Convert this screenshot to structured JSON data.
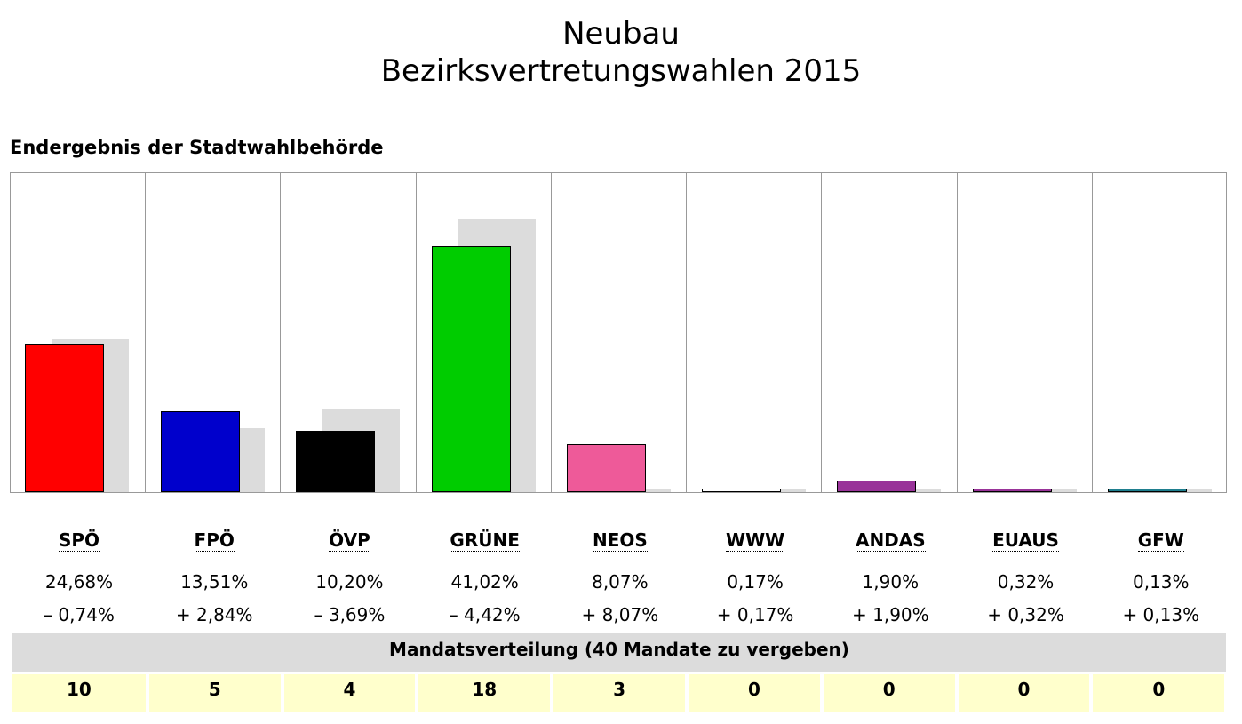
{
  "title": "Neubau",
  "subtitle": "Bezirksvertretungswahlen 2015",
  "section": "Endergebnis der Stadtwahlbehörde",
  "mandate_header": "Mandatsverteilung (40 Mandate zu vergeben)",
  "chart_data": {
    "type": "bar",
    "categories": [
      "SPÖ",
      "FPÖ",
      "ÖVP",
      "GRÜNE",
      "NEOS",
      "WWW",
      "ANDAS",
      "EUAUS",
      "GFW"
    ],
    "values": [
      24.68,
      13.51,
      10.2,
      41.02,
      8.07,
      0.17,
      1.9,
      0.32,
      0.13
    ],
    "previous": [
      25.42,
      10.67,
      13.89,
      45.44,
      0,
      0,
      0,
      0,
      0
    ],
    "value_labels": [
      "24,68%",
      "13,51%",
      "10,20%",
      "41,02%",
      "8,07%",
      "0,17%",
      "1,90%",
      "0,32%",
      "0,13%"
    ],
    "change_labels": [
      "– 0,74%",
      "+ 2,84%",
      "– 3,69%",
      "– 4,42%",
      "+ 8,07%",
      "+ 0,17%",
      "+ 1,90%",
      "+ 0,32%",
      "+ 0,13%"
    ],
    "mandates": [
      "10",
      "5",
      "4",
      "18",
      "3",
      "0",
      "0",
      "0",
      "0"
    ],
    "colors": [
      "#ff0000",
      "#0000cc",
      "#000000",
      "#00cc00",
      "#ee5a99",
      "#ffffff",
      "#993399",
      "#993399",
      "#1f7f8f"
    ],
    "previous_color": "#dcdcdc",
    "grid": false
  }
}
